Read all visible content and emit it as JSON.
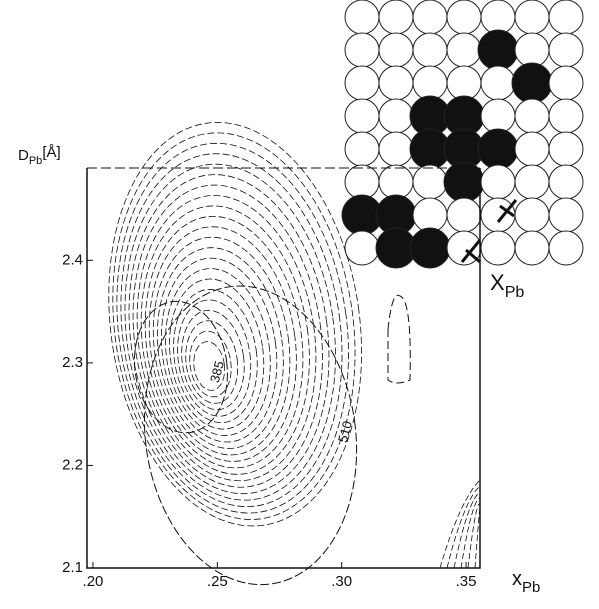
{
  "chart_data": {
    "type": "contour",
    "ylabel": {
      "main": "D",
      "sub": "Pb",
      "unit": "[Å]"
    },
    "xlabel": {
      "main": "x",
      "sub": "Pb"
    },
    "inset_label": {
      "main": "X",
      "sub": "Pb"
    },
    "xlim": [
      0.1976,
      0.3556
    ],
    "ylim": [
      2.1,
      2.49
    ],
    "xticks": [
      {
        "value": 0.2,
        "label": ".20"
      },
      {
        "value": 0.25,
        "label": ".25"
      },
      {
        "value": 0.3,
        "label": ".30"
      },
      {
        "value": 0.35,
        "label": ".35"
      }
    ],
    "yticks": [
      2.1,
      2.2,
      2.3,
      2.4
    ],
    "levels": [
      385,
      510
    ],
    "color": "#111"
  }
}
